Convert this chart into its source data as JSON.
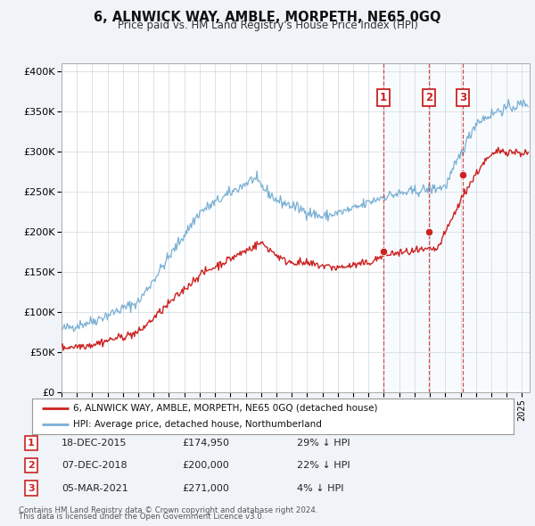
{
  "title": "6, ALNWICK WAY, AMBLE, MORPETH, NE65 0GQ",
  "subtitle": "Price paid vs. HM Land Registry's House Price Index (HPI)",
  "background_color": "#f0f4f8",
  "plot_bg_color": "#ffffff",
  "hpi_color": "#7ab0d4",
  "hpi_fill_color": "#ccdff0",
  "price_color": "#cc2222",
  "marker_color": "#cc2222",
  "vline_color": "#cc3333",
  "yticks": [
    0,
    50000,
    100000,
    150000,
    200000,
    250000,
    300000,
    350000,
    400000
  ],
  "ytick_labels": [
    "£0",
    "£50K",
    "£100K",
    "£150K",
    "£200K",
    "£250K",
    "£300K",
    "£350K",
    "£400K"
  ],
  "xmin": 1995.0,
  "xmax": 2025.5,
  "ymin": 0,
  "ymax": 410000,
  "transactions": [
    {
      "num": 1,
      "date_x": 2015.96,
      "price": 174950,
      "label": "1",
      "date_str": "18-DEC-2015",
      "price_str": "£174,950",
      "hpi_diff": "29% ↓ HPI"
    },
    {
      "num": 2,
      "date_x": 2018.92,
      "price": 200000,
      "label": "2",
      "date_str": "07-DEC-2018",
      "price_str": "£200,000",
      "hpi_diff": "22% ↓ HPI"
    },
    {
      "num": 3,
      "date_x": 2021.17,
      "price": 271000,
      "label": "3",
      "date_str": "05-MAR-2021",
      "price_str": "£271,000",
      "hpi_diff": "4% ↓ HPI"
    }
  ],
  "legend_line1": "6, ALNWICK WAY, AMBLE, MORPETH, NE65 0GQ (detached house)",
  "legend_line2": "HPI: Average price, detached house, Northumberland",
  "footer1": "Contains HM Land Registry data © Crown copyright and database right 2024.",
  "footer2": "This data is licensed under the Open Government Licence v3.0."
}
